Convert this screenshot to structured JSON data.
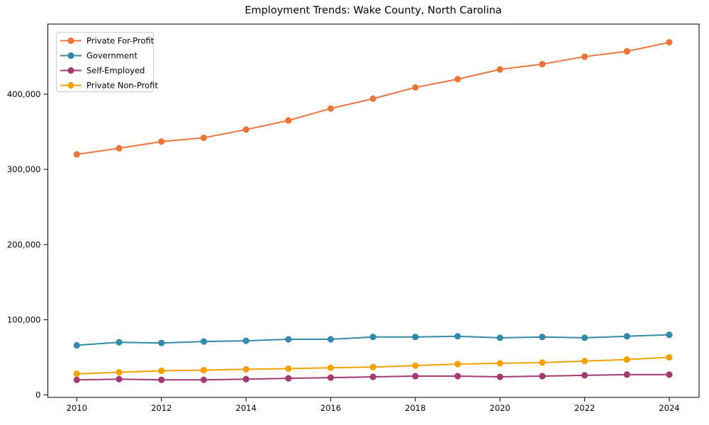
{
  "chart_data": {
    "type": "line",
    "title": "Employment Trends: Wake County, North Carolina",
    "xlabel": "",
    "ylabel": "",
    "x": [
      2010,
      2011,
      2012,
      2013,
      2014,
      2015,
      2016,
      2017,
      2018,
      2019,
      2020,
      2021,
      2022,
      2023,
      2024
    ],
    "series": [
      {
        "name": "Private For-Profit",
        "color": "#E8763C",
        "values": [
          320000,
          328000,
          337000,
          342000,
          353000,
          365000,
          381000,
          394000,
          409000,
          420000,
          433000,
          440000,
          450000,
          457000,
          469000
        ]
      },
      {
        "name": "Government",
        "color": "#3588A8",
        "values": [
          66000,
          70000,
          69000,
          71000,
          72000,
          74000,
          74000,
          77000,
          77000,
          78000,
          76000,
          77000,
          76000,
          78000,
          80000
        ]
      },
      {
        "name": "Self-Employed",
        "color": "#A23B72",
        "values": [
          20000,
          21000,
          20000,
          20000,
          21000,
          22000,
          23000,
          24000,
          25000,
          25000,
          24000,
          25000,
          26000,
          27000,
          27000
        ]
      },
      {
        "name": "Private Non-Profit",
        "color": "#F2A104",
        "values": [
          28000,
          30000,
          32000,
          33000,
          34000,
          35000,
          36000,
          37000,
          39000,
          41000,
          42000,
          43000,
          45000,
          47000,
          50000
        ]
      }
    ],
    "xticks": [
      2010,
      2012,
      2014,
      2016,
      2018,
      2020,
      2022,
      2024
    ],
    "yticks": [
      0,
      100000,
      200000,
      300000,
      400000
    ],
    "ylim": [
      -3000,
      493000
    ],
    "xlim": [
      2009.3,
      2024.7
    ],
    "grid": false,
    "legend_position": "upper left",
    "background_color": "#ffffff",
    "spine_color": "#000000",
    "legend_border_color": "#cccccc",
    "marker": "circle",
    "line_width": 2
  }
}
